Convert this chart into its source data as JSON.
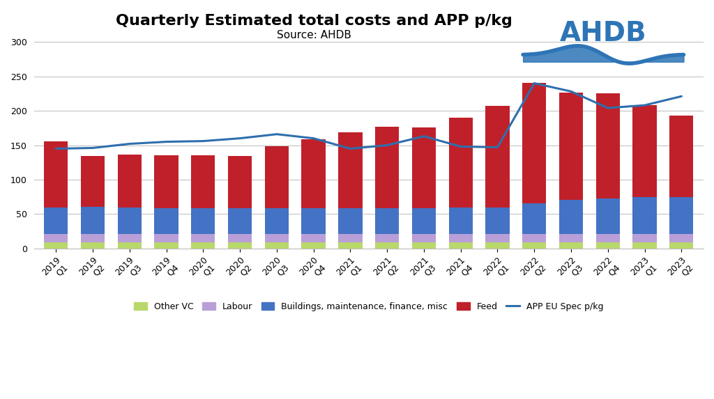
{
  "categories": [
    "2019 Q1",
    "2019 Q2",
    "2019 Q3",
    "2019 Q4",
    "2020 Q1",
    "2020 Q2",
    "2020 Q3",
    "2020 Q4",
    "2021 Q1",
    "2021 Q2",
    "2021 Q3",
    "2021 Q4",
    "2022 Q1",
    "2022 Q2",
    "2022 Q3",
    "2022 Q4",
    "2023 Q1",
    "2023 Q2"
  ],
  "other_vc": [
    9,
    9,
    9,
    9,
    9,
    9,
    9,
    9,
    9,
    9,
    9,
    9,
    9,
    9,
    9,
    9,
    9,
    9
  ],
  "labour": [
    12,
    12,
    12,
    12,
    12,
    12,
    12,
    12,
    12,
    12,
    12,
    12,
    12,
    12,
    12,
    12,
    12,
    12
  ],
  "buildings": [
    39,
    40,
    39,
    38,
    38,
    38,
    38,
    38,
    38,
    38,
    38,
    39,
    39,
    45,
    50,
    52,
    54,
    54
  ],
  "feed": [
    96,
    73,
    76,
    76,
    76,
    75,
    90,
    100,
    110,
    118,
    117,
    130,
    147,
    174,
    155,
    152,
    133,
    118
  ],
  "app": [
    145,
    146,
    152,
    155,
    156,
    160,
    166,
    160,
    145,
    150,
    163,
    148,
    147,
    240,
    228,
    204,
    208,
    221
  ],
  "title": "Quarterly Estimated total costs and APP p/kg",
  "subtitle": "Source: AHDB",
  "ylim": [
    0,
    300
  ],
  "yticks": [
    0,
    50,
    100,
    150,
    200,
    250,
    300
  ],
  "color_other_vc": "#b8d86b",
  "color_labour": "#b89fd8",
  "color_buildings": "#4472c4",
  "color_feed": "#c0202a",
  "color_app_line": "#4472c4",
  "legend_labels": [
    "Other VC",
    "Labour",
    "Buildings, maintenance, finance, misc",
    "Feed",
    "APP EU Spec p/kg"
  ],
  "background_color": "#ffffff",
  "title_fontsize": 16,
  "subtitle_fontsize": 11,
  "tick_fontsize": 9,
  "legend_fontsize": 9,
  "bar_width": 0.65
}
